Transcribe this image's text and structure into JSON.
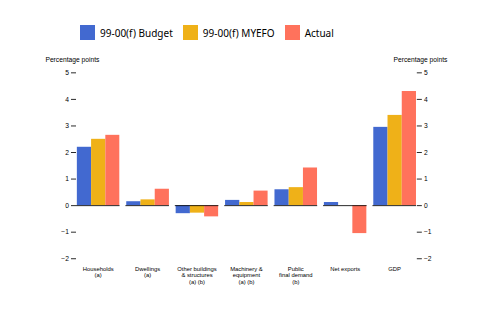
{
  "chart_data": {
    "type": "bar",
    "categories": [
      "Households\n(a)",
      "Dwellings\n(a)",
      "Other buildings\n& structures\n(a) (b)",
      "Machinery &\nequipment\n(a) (b)",
      "Public\nfinal demand\n(b)",
      "Net exports",
      "GDP"
    ],
    "series": [
      {
        "name": "99-00(f) Budget",
        "values": [
          2.2,
          0.15,
          -0.3,
          0.2,
          0.6,
          0.12,
          2.95
        ]
      },
      {
        "name": "99-00(f) MYEFO",
        "values": [
          2.5,
          0.22,
          -0.28,
          0.12,
          0.68,
          0.0,
          3.4
        ]
      },
      {
        "name": "Actual",
        "values": [
          2.65,
          0.62,
          -0.42,
          0.55,
          1.42,
          -1.05,
          4.3
        ]
      }
    ],
    "ylabel": "Percentage points",
    "y2label": "Percentage points",
    "ylim": [
      -2,
      5
    ],
    "yticks": [
      -2,
      -1,
      0,
      1,
      2,
      3,
      4,
      5
    ],
    "y2lim": [
      -2,
      5
    ],
    "y2ticks": [
      -2,
      -1,
      0,
      1,
      2,
      3,
      4,
      5
    ],
    "legend": "upper left",
    "grid": false
  }
}
